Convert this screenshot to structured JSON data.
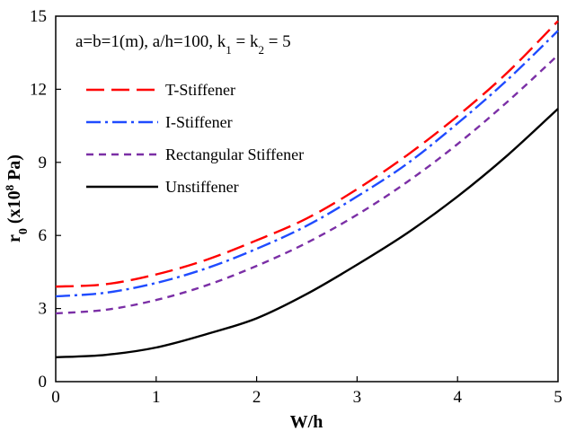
{
  "chart_data": {
    "type": "line",
    "xlabel": "W/h",
    "ylabel_main": "r",
    "ylabel_sub": "0",
    "ylabel_rest_1": " (x10",
    "ylabel_sup": "8",
    "ylabel_rest_2": " Pa)",
    "annotation": {
      "part1": "a=b=1(m), a/h=100, k",
      "sub1": "1",
      "part2": " = k",
      "sub2": "2",
      "part3": " = 5"
    },
    "xlim": [
      0,
      5
    ],
    "ylim": [
      0,
      15
    ],
    "x_ticks": [
      "0",
      "1",
      "2",
      "3",
      "4",
      "5"
    ],
    "y_ticks": [
      "0",
      "3",
      "6",
      "9",
      "12",
      "15"
    ],
    "grid": false,
    "legend_position": "top-left",
    "x": [
      0,
      0.5,
      1,
      1.5,
      2,
      2.5,
      3,
      3.5,
      4,
      4.5,
      5
    ],
    "series": [
      {
        "name": "T-Stiffener",
        "color": "#ff0000",
        "style": "dash",
        "values": [
          3.9,
          4.0,
          4.4,
          5.0,
          5.8,
          6.7,
          7.9,
          9.3,
          10.9,
          12.7,
          14.8
        ]
      },
      {
        "name": "I-Stiffener",
        "color": "#1f4bff",
        "style": "dashdot",
        "values": [
          3.5,
          3.65,
          4.05,
          4.65,
          5.45,
          6.4,
          7.6,
          8.95,
          10.6,
          12.4,
          14.4
        ]
      },
      {
        "name": "Rectangular Stiffener",
        "color": "#7b2fa6",
        "style": "short-dash",
        "values": [
          2.8,
          2.95,
          3.35,
          3.95,
          4.75,
          5.7,
          6.85,
          8.2,
          9.75,
          11.5,
          13.4
        ]
      },
      {
        "name": "Unstiffener",
        "color": "#000000",
        "style": "solid",
        "values": [
          1.0,
          1.1,
          1.4,
          1.95,
          2.6,
          3.6,
          4.8,
          6.1,
          7.6,
          9.3,
          11.2
        ]
      }
    ]
  }
}
